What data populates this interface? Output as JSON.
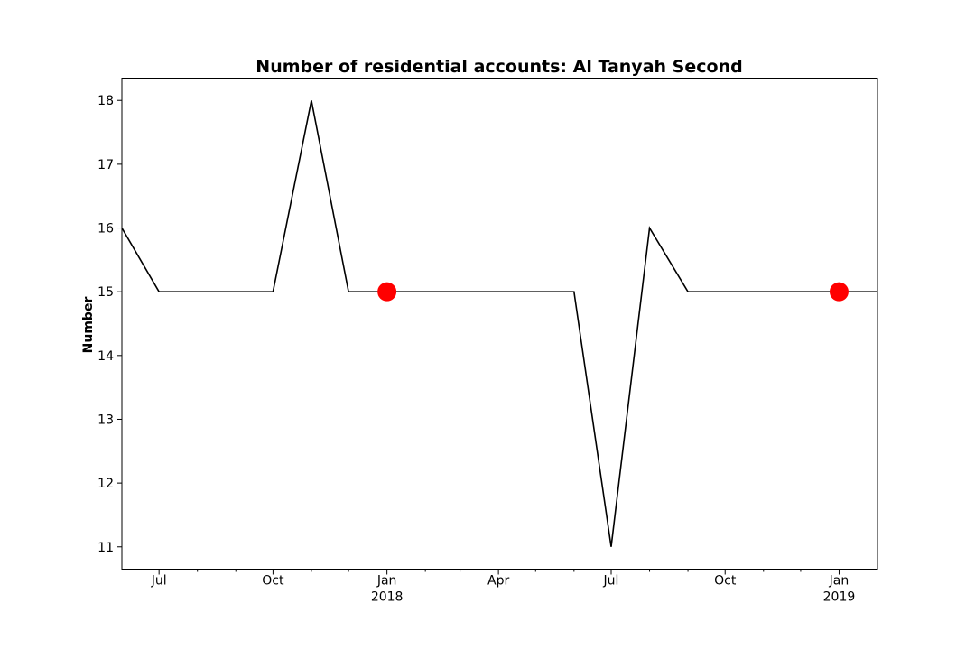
{
  "chart_data": {
    "type": "line",
    "title": "Number of residential accounts: Al Tanyah Second",
    "xlabel": "",
    "ylabel": "Number",
    "xlim": [
      "2017-06-01",
      "2019-02-01"
    ],
    "ylim": [
      10.65,
      18.35
    ],
    "grid": false,
    "y_ticks": [
      11,
      12,
      13,
      14,
      15,
      16,
      17,
      18
    ],
    "x_major_ticks": [
      {
        "date": "2017-07-01",
        "label": "Jul"
      },
      {
        "date": "2017-10-01",
        "label": "Oct"
      },
      {
        "date": "2018-01-01",
        "label": "Jan",
        "sublabel": "2018"
      },
      {
        "date": "2018-04-01",
        "label": "Apr"
      },
      {
        "date": "2018-07-01",
        "label": "Jul"
      },
      {
        "date": "2018-10-01",
        "label": "Oct"
      },
      {
        "date": "2019-01-01",
        "label": "Jan",
        "sublabel": "2019"
      }
    ],
    "x_minor_ticks": [
      "2017-08-01",
      "2017-09-01",
      "2017-11-01",
      "2017-12-01",
      "2018-02-01",
      "2018-03-01",
      "2018-05-01",
      "2018-06-01",
      "2018-08-01",
      "2018-09-01",
      "2018-11-01",
      "2018-12-01"
    ],
    "series": [
      {
        "color": "#000000",
        "x": [
          "2017-06-01",
          "2017-07-01",
          "2017-08-01",
          "2017-09-01",
          "2017-10-01",
          "2017-11-01",
          "2017-12-01",
          "2018-01-01",
          "2018-02-01",
          "2018-03-01",
          "2018-04-01",
          "2018-05-01",
          "2018-06-01",
          "2018-07-01",
          "2018-08-01",
          "2018-09-01",
          "2018-10-01",
          "2018-11-01",
          "2018-12-01",
          "2019-01-01",
          "2019-02-01"
        ],
        "y": [
          16,
          15,
          15,
          15,
          15,
          18,
          15,
          15,
          15,
          15,
          15,
          15,
          15,
          11,
          16,
          15,
          15,
          15,
          15,
          15,
          15
        ]
      }
    ],
    "markers": {
      "color": "#ff0000",
      "points": [
        {
          "x": "2018-01-01",
          "y": 15
        },
        {
          "x": "2019-01-01",
          "y": 15
        }
      ]
    }
  }
}
